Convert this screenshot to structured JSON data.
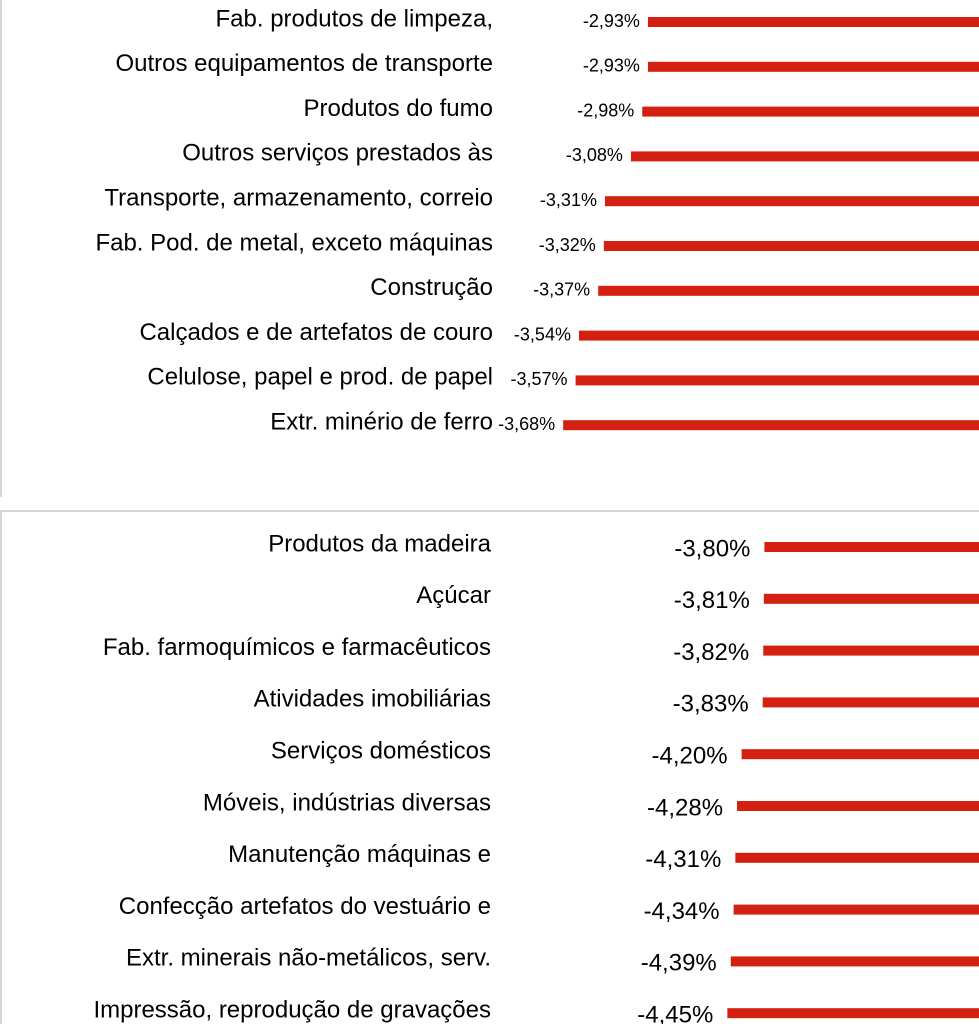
{
  "chart_data": [
    {
      "type": "bar",
      "orientation": "horizontal",
      "color": "#d42010",
      "categories": [
        "Fab. produtos de limpeza,",
        "Outros equipamentos de transporte",
        "Produtos do fumo",
        "Outros serviços prestados às",
        "Transporte, armazenamento, correio",
        "Fab. Pod. de metal, exceto máquinas",
        "Construção",
        "Calçados e de artefatos de couro",
        "Celulose, papel e prod. de papel",
        "Extr. minério de ferro"
      ],
      "values": [
        -2.93,
        -2.93,
        -2.98,
        -3.08,
        -3.31,
        -3.32,
        -3.37,
        -3.54,
        -3.57,
        -3.68
      ],
      "value_labels": [
        "-2,93%",
        "-2,93%",
        "-2,98%",
        "-3,08%",
        "-3,31%",
        "-3,32%",
        "-3,37%",
        "-3,54%",
        "-3,57%",
        "-3,68%"
      ]
    },
    {
      "type": "bar",
      "orientation": "horizontal",
      "color": "#d42010",
      "categories": [
        "Produtos da madeira",
        "Açúcar",
        "Fab. farmoquímicos e farmacêuticos",
        "Atividades imobiliárias",
        "Serviços domésticos",
        "Móveis, indústrias  diversas",
        "Manutenção máquinas e",
        "Confecção artefatos do vestuário e",
        "Extr. minerais não-metálicos, serv.",
        "Impressão, reprodução de gravações"
      ],
      "values": [
        -3.8,
        -3.81,
        -3.82,
        -3.83,
        -4.2,
        -4.28,
        -4.31,
        -4.34,
        -4.39,
        -4.45
      ],
      "value_labels": [
        "-3,80%",
        "-3,81%",
        "-3,82%",
        "-3,83%",
        "-4,20%",
        "-4,28%",
        "-4,31%",
        "-4,34%",
        "-4,39%",
        "-4,45%"
      ]
    }
  ]
}
